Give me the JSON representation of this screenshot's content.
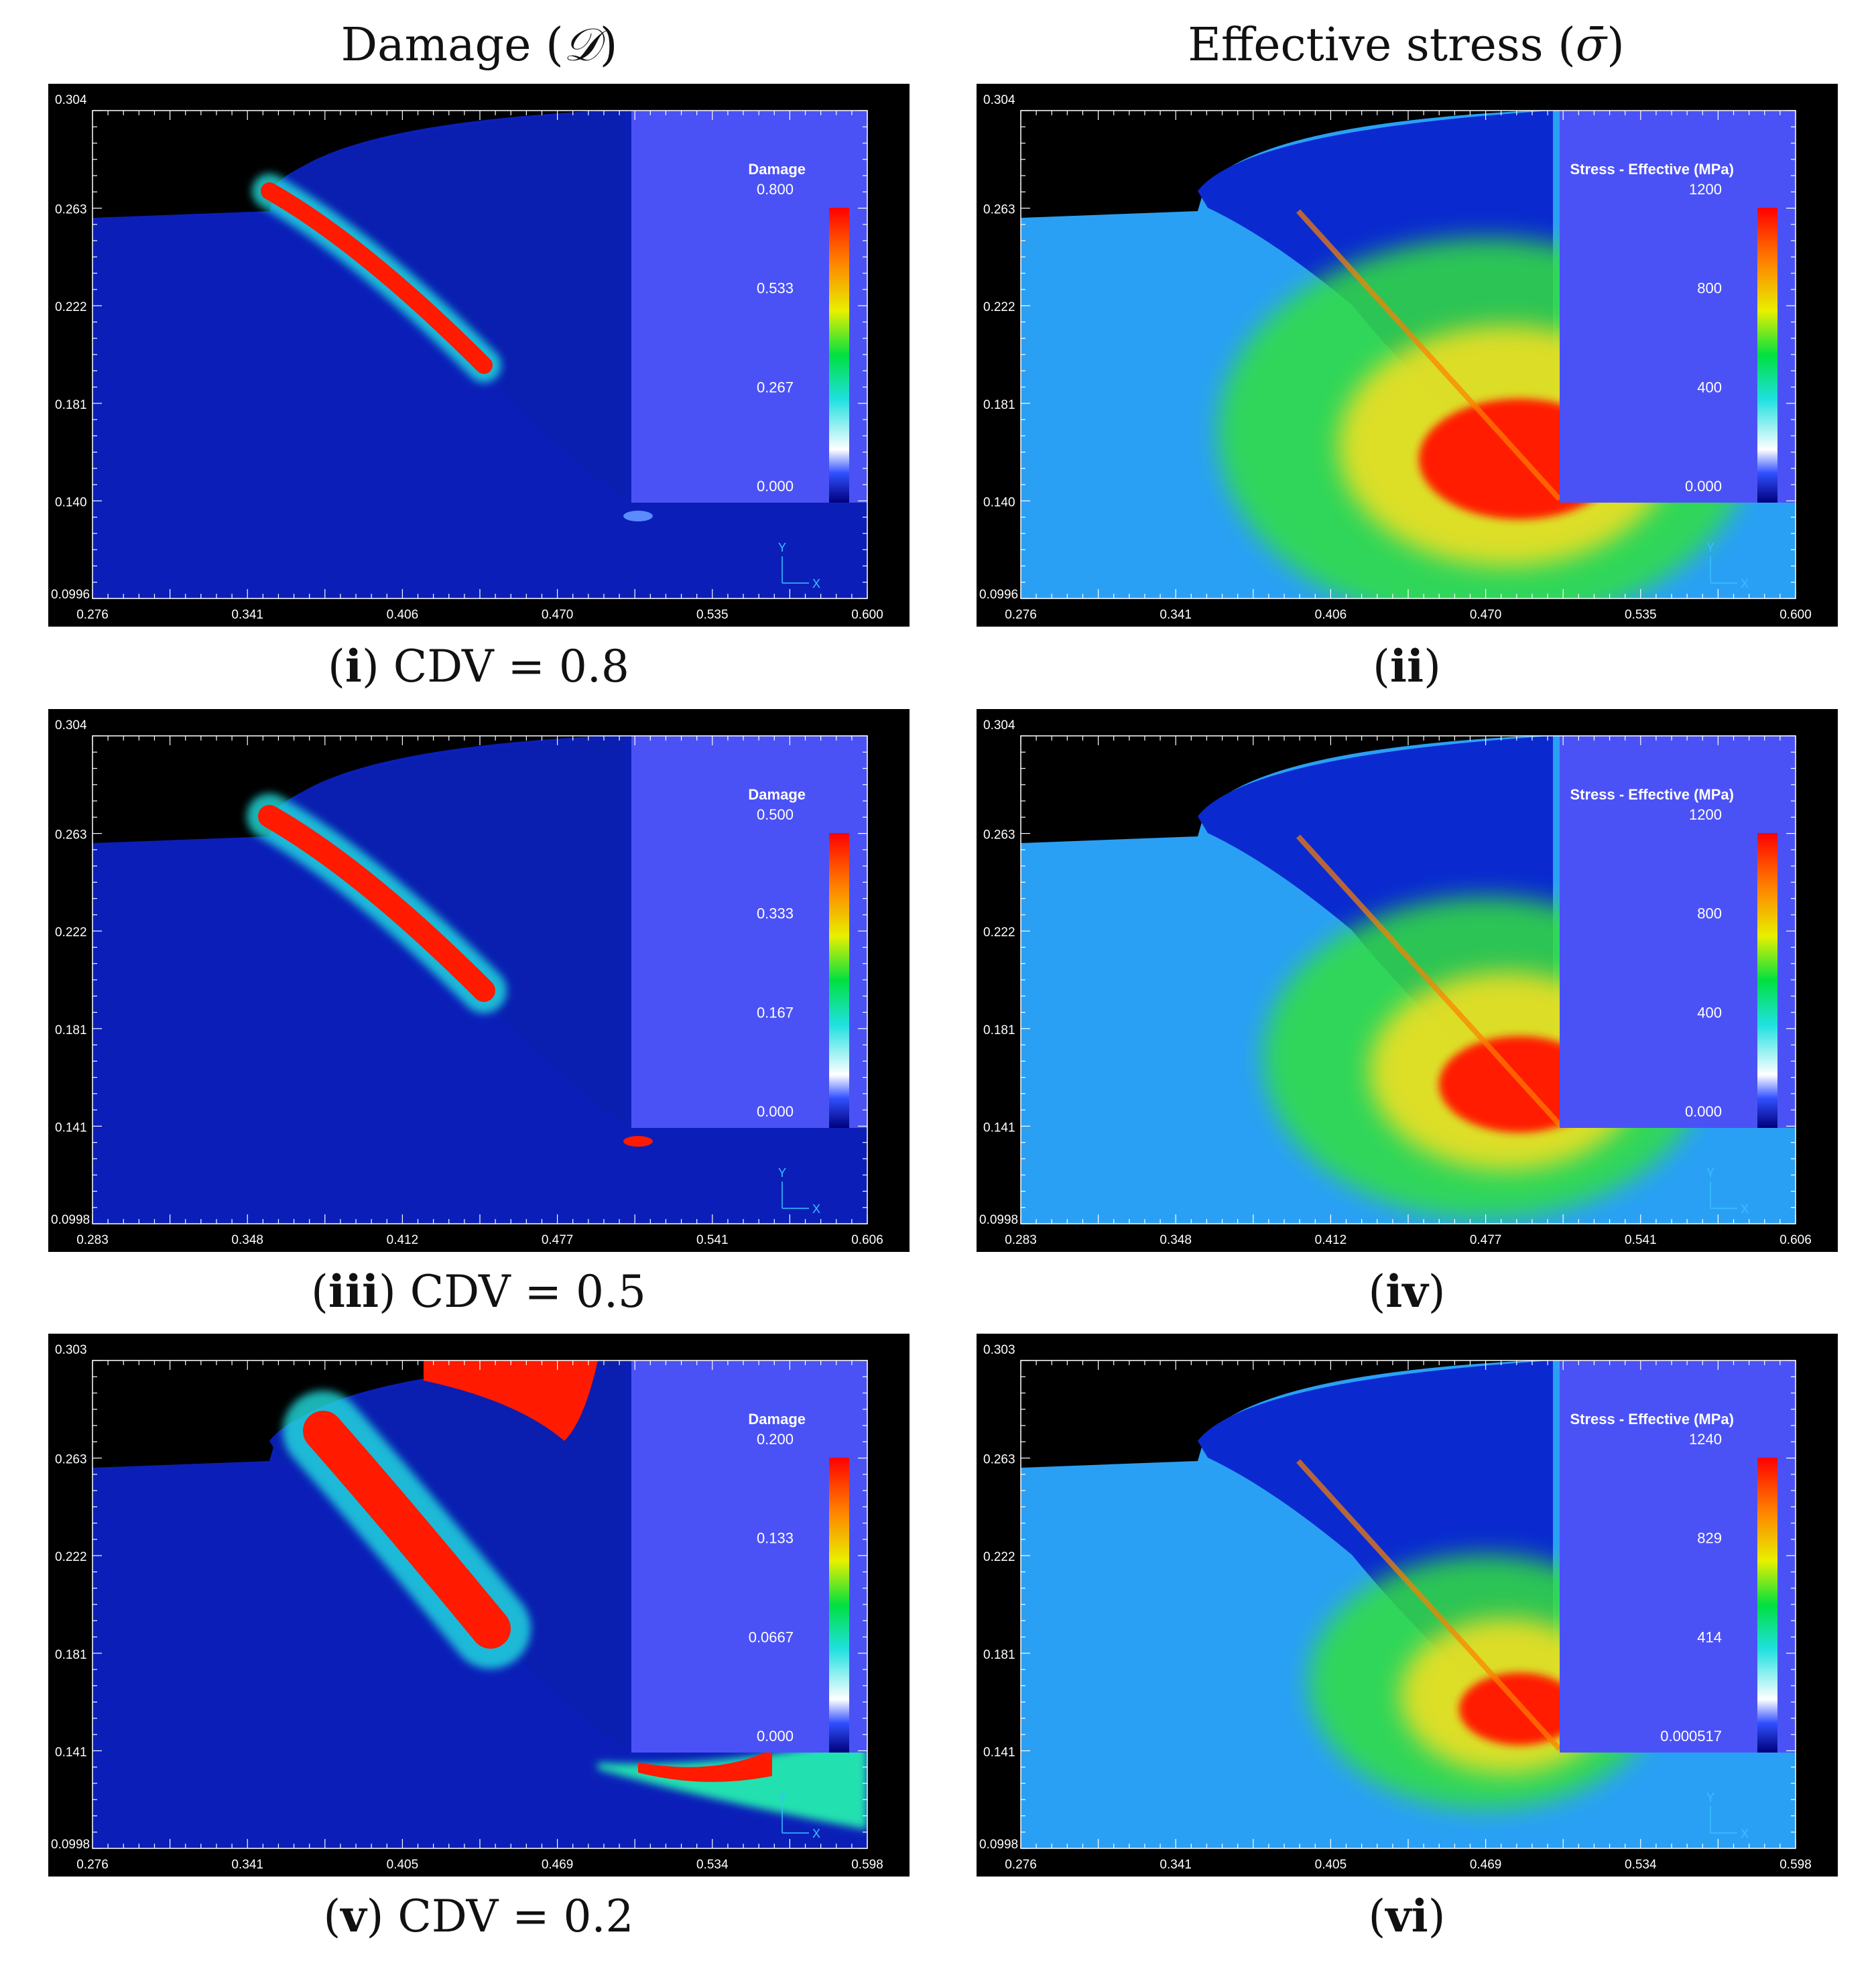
{
  "columns": {
    "left_prefix": "Damage (",
    "left_symbol": "𝒟",
    "left_suffix": ")",
    "right_prefix": "Effective stress (",
    "right_symbol": "σ̄",
    "right_suffix": ")"
  },
  "colors": {
    "panel_bg": "#000000",
    "field_blue": "#0a1fc0",
    "legend_bg": "#4b52f5",
    "hot": "#ff1a00",
    "axis_text": "#ffffff"
  },
  "panels": [
    {
      "id": "i",
      "kind": "damage",
      "caption_label": "i",
      "caption_text": " CDV = 0.8",
      "legend_title": "Damage",
      "legend_ticks": [
        "0.800",
        "0.533",
        "0.267",
        "0.000"
      ],
      "y_ticks": [
        "0.304",
        "0.263",
        "0.222",
        "0.181",
        "0.140",
        "0.0996"
      ],
      "x_ticks": [
        "0.276",
        "0.341",
        "0.406",
        "0.470",
        "0.535",
        "0.600"
      ],
      "axis_triad": [
        "Y",
        "X"
      ]
    },
    {
      "id": "ii",
      "kind": "stress",
      "caption_label": "ii",
      "caption_text": "",
      "legend_title": "Stress - Effective (MPa)",
      "legend_ticks": [
        "1200",
        "800",
        "400",
        "0.000"
      ],
      "y_ticks": [
        "0.304",
        "0.263",
        "0.222",
        "0.181",
        "0.140",
        "0.0996"
      ],
      "x_ticks": [
        "0.276",
        "0.341",
        "0.406",
        "0.470",
        "0.535",
        "0.600"
      ],
      "axis_triad": [
        "Y",
        "X"
      ]
    },
    {
      "id": "iii",
      "kind": "damage",
      "caption_label": "iii",
      "caption_text": " CDV = 0.5",
      "legend_title": "Damage",
      "legend_ticks": [
        "0.500",
        "0.333",
        "0.167",
        "0.000"
      ],
      "y_ticks": [
        "0.304",
        "0.263",
        "0.222",
        "0.181",
        "0.141",
        "0.0998"
      ],
      "x_ticks": [
        "0.283",
        "0.348",
        "0.412",
        "0.477",
        "0.541",
        "0.606"
      ],
      "axis_triad": [
        "Y",
        "X"
      ]
    },
    {
      "id": "iv",
      "kind": "stress",
      "caption_label": "iv",
      "caption_text": "",
      "legend_title": "Stress - Effective (MPa)",
      "legend_ticks": [
        "1200",
        "800",
        "400",
        "0.000"
      ],
      "y_ticks": [
        "0.304",
        "0.263",
        "0.222",
        "0.181",
        "0.141",
        "0.0998"
      ],
      "x_ticks": [
        "0.283",
        "0.348",
        "0.412",
        "0.477",
        "0.541",
        "0.606"
      ],
      "axis_triad": [
        "Y",
        "X"
      ]
    },
    {
      "id": "v",
      "kind": "damage",
      "caption_label": "v",
      "caption_text": " CDV = 0.2",
      "legend_title": "Damage",
      "legend_ticks": [
        "0.200",
        "0.133",
        "0.0667",
        "0.000"
      ],
      "y_ticks": [
        "0.303",
        "0.263",
        "0.222",
        "0.181",
        "0.141",
        "0.0998"
      ],
      "x_ticks": [
        "0.276",
        "0.341",
        "0.405",
        "0.469",
        "0.534",
        "0.598"
      ],
      "axis_triad": [
        "Y",
        "X"
      ]
    },
    {
      "id": "vi",
      "kind": "stress",
      "caption_label": "vi",
      "caption_text": "",
      "legend_title": "Stress - Effective (MPa)",
      "legend_ticks": [
        "1240",
        "829",
        "414",
        "0.000517"
      ],
      "y_ticks": [
        "0.303",
        "0.263",
        "0.222",
        "0.181",
        "0.141",
        "0.0998"
      ],
      "x_ticks": [
        "0.276",
        "0.341",
        "0.405",
        "0.469",
        "0.534",
        "0.598"
      ],
      "axis_triad": [
        "Y",
        "X"
      ]
    }
  ]
}
